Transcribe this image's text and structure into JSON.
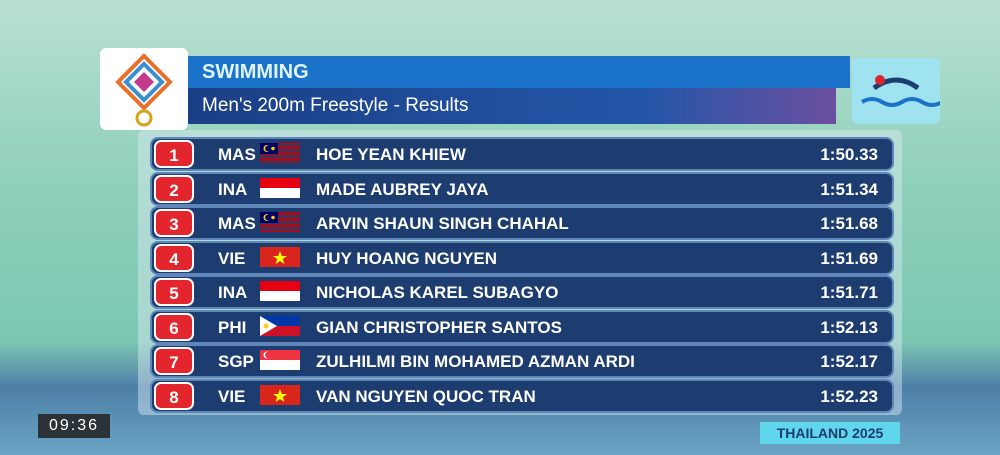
{
  "header": {
    "sport": "SWIMMING",
    "event": "Men's 200m Freestyle - Results"
  },
  "results": [
    {
      "rank": 1,
      "country": "MAS",
      "name": "HOE YEAN KHIEW",
      "time": "1:50.33"
    },
    {
      "rank": 2,
      "country": "INA",
      "name": "MADE AUBREY JAYA",
      "time": "1:51.34"
    },
    {
      "rank": 3,
      "country": "MAS",
      "name": "ARVIN SHAUN SINGH CHAHAL",
      "time": "1:51.68"
    },
    {
      "rank": 4,
      "country": "VIE",
      "name": "HUY HOANG NGUYEN",
      "time": "1:51.69"
    },
    {
      "rank": 5,
      "country": "INA",
      "name": "NICHOLAS KAREL SUBAGYO",
      "time": "1:51.71"
    },
    {
      "rank": 6,
      "country": "PHI",
      "name": "GIAN CHRISTOPHER SANTOS",
      "time": "1:52.13"
    },
    {
      "rank": 7,
      "country": "SGP",
      "name": "ZULHILMI BIN MOHAMED AZMAN ARDI",
      "time": "1:52.17"
    },
    {
      "rank": 8,
      "country": "VIE",
      "name": "VAN NGUYEN QUOC TRAN",
      "time": "1:52.23"
    }
  ],
  "clock": "09:36",
  "footer": "THAILAND 2025"
}
